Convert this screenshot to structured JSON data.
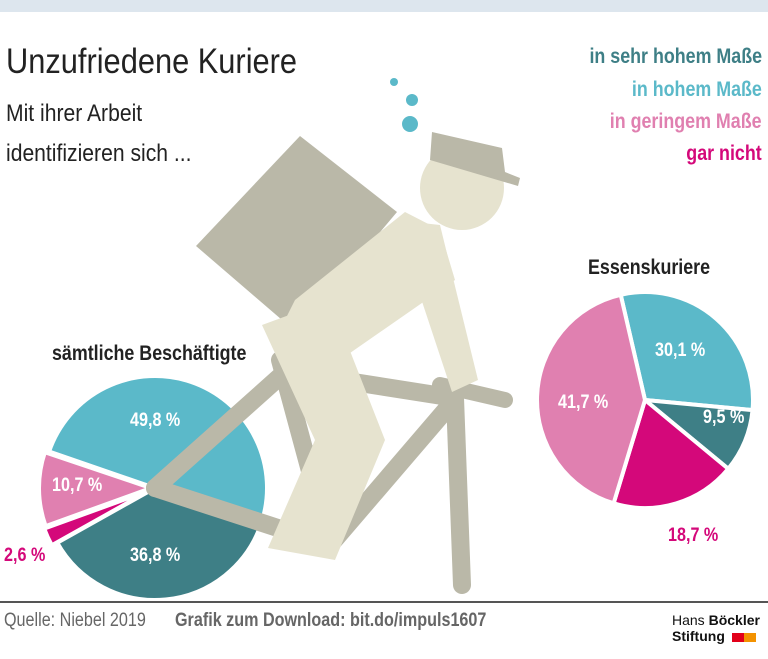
{
  "header": {
    "title": "Unzufriedene Kuriere",
    "subtitle_line1": "Mit ihrer Arbeit",
    "subtitle_line2": "identifizieren sich ..."
  },
  "legend": [
    {
      "label": "in sehr hohem Maße",
      "color": "#3e7f86"
    },
    {
      "label": "in hohem Maße",
      "color": "#5bb9c9"
    },
    {
      "label": "in geringem Maße",
      "color": "#e080b0"
    },
    {
      "label": "gar nicht",
      "color": "#d4087a"
    }
  ],
  "chart_data": [
    {
      "type": "pie",
      "title": "sämtliche Beschäftigte",
      "categories": [
        "in sehr hohem Maße",
        "in hohem Maße",
        "in geringem Maße",
        "gar nicht"
      ],
      "values": [
        36.8,
        49.8,
        10.7,
        2.6
      ],
      "labels": [
        "36,8 %",
        "49,8 %",
        "10,7 %",
        "2,6 %"
      ]
    },
    {
      "type": "pie",
      "title": "Essenskuriere",
      "categories": [
        "in sehr hohem Maße",
        "in hohem Maße",
        "in geringem Maße",
        "gar nicht"
      ],
      "values": [
        9.5,
        30.1,
        41.7,
        18.7
      ],
      "labels": [
        "9,5 %",
        "30,1 %",
        "41,7 %",
        "18,7 %"
      ]
    }
  ],
  "footer": {
    "source": "Quelle: Niebel 2019",
    "download": "Grafik zum Download: bit.do/impuls1607",
    "logo_line1a": "Hans ",
    "logo_line1b": "Böckler",
    "logo_line2": "Stiftung"
  },
  "colors": {
    "frame": "#bab8a8",
    "body": "#e6e3cf",
    "logo_red": "#e2001a",
    "logo_orange": "#f39200"
  }
}
